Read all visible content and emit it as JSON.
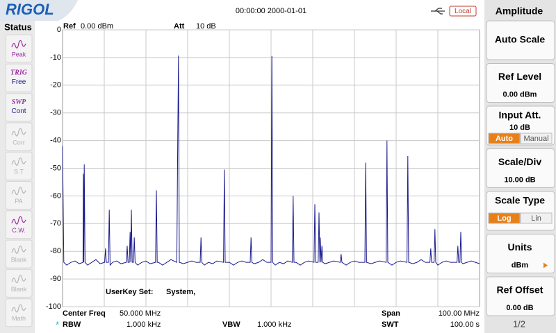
{
  "header": {
    "logo": "RIGOL",
    "timestamp": "00:00:00 2000-01-01",
    "remote": "Local"
  },
  "status": {
    "title": "Status",
    "items": [
      {
        "label": "Peak",
        "active": true
      },
      {
        "tag": "TRIG",
        "label": "Free",
        "active": true
      },
      {
        "tag": "SWP",
        "label": "Cont",
        "active": true
      },
      {
        "label": "Corr",
        "active": false
      },
      {
        "label": "S.T",
        "active": false
      },
      {
        "label": "PA",
        "active": false
      },
      {
        "label": "C.W.",
        "active": true
      },
      {
        "label": "Blank",
        "active": false
      },
      {
        "label": "Blank",
        "active": false
      },
      {
        "label": "Math",
        "active": false
      }
    ]
  },
  "chart_data": {
    "type": "line",
    "ref_label": "Ref",
    "ref_value": "0.00 dBm",
    "att_label": "Att",
    "att_value": "10 dB",
    "annotation_label": "UserKey Set:",
    "annotation_value": "System,",
    "xlim": [
      0,
      100
    ],
    "ylim": [
      -100,
      0
    ],
    "yticks": [
      0,
      -10,
      -20,
      -30,
      -40,
      -50,
      -60,
      -70,
      -80,
      -90,
      -100
    ],
    "grid": true,
    "x": [
      0,
      0.3,
      1,
      2,
      3,
      4,
      4.9,
      5.0,
      5.1,
      5.2,
      5.4,
      6,
      7,
      8,
      9,
      10.1,
      10.3,
      10.5,
      11.0,
      11.2,
      11.4,
      12,
      13,
      14,
      15.3,
      15.5,
      15.7,
      16.0,
      16.2,
      16.35,
      16.5,
      16.7,
      17.0,
      17.2,
      17.4,
      18,
      19,
      20,
      21,
      22.3,
      22.5,
      22.7,
      23,
      24,
      25,
      26,
      27.4,
      27.6,
      27.8,
      28.0,
      29,
      30,
      31,
      32,
      33.0,
      33.2,
      33.4,
      34,
      35,
      36,
      37,
      38.6,
      38.8,
      39.0,
      40,
      41,
      42,
      43,
      44,
      45.0,
      45.2,
      45.4,
      46,
      47,
      48,
      49,
      50.0,
      50.2,
      50.4,
      51,
      52,
      53,
      54,
      55.1,
      55.3,
      55.5,
      56,
      57,
      58,
      59,
      60.3,
      60.5,
      60.7,
      61.3,
      61.5,
      61.7,
      61.8,
      62.0,
      62.2,
      62.4,
      63,
      64,
      65,
      66.6,
      66.8,
      67.0,
      68,
      69,
      70,
      71,
      72.5,
      72.7,
      72.9,
      74,
      75,
      76,
      77.6,
      77.8,
      78.0,
      79,
      80,
      81,
      82.6,
      82.8,
      83.0,
      84,
      85,
      86,
      87,
      88.1,
      88.3,
      88.5,
      89.1,
      89.3,
      89.5,
      90,
      91,
      92,
      93,
      94.6,
      94.8,
      95.0,
      95.3,
      95.5,
      95.7,
      96,
      97,
      98,
      99,
      100
    ],
    "series": [
      {
        "color": "#1a1a8c",
        "values": [
          -42,
          -84,
          -85,
          -84,
          -83.5,
          -84.5,
          -84,
          -52,
          -84,
          -48.6,
          -84,
          -85,
          -84,
          -83,
          -84.5,
          -84,
          -79,
          -84,
          -84,
          -65,
          -85,
          -84,
          -83.5,
          -84.5,
          -84,
          -78,
          -84,
          -84,
          -73,
          -84,
          -65,
          -84,
          -84,
          -75,
          -84,
          -85,
          -84,
          -83.5,
          -84.5,
          -84,
          -58,
          -84,
          -84,
          -85,
          -84,
          -83,
          -84,
          -44,
          -9.3,
          -84,
          -84.5,
          -84,
          -83.5,
          -84,
          -84,
          -75,
          -84,
          -85,
          -84,
          -84.5,
          -83.5,
          -84,
          -50.5,
          -84,
          -84,
          -85,
          -84,
          -83.5,
          -84,
          -84,
          -75,
          -84,
          -84.5,
          -84,
          -83,
          -84,
          -84,
          -9.5,
          -84,
          -85,
          -84,
          -84.5,
          -83.5,
          -84,
          -60,
          -84,
          -84,
          -85,
          -84,
          -83.5,
          -84,
          -63,
          -84,
          -84,
          -66,
          -84,
          -75,
          -84,
          -78,
          -84,
          -84.5,
          -84,
          -83.5,
          -84,
          -81,
          -84,
          -85,
          -84,
          -83.5,
          -84,
          -84,
          -48,
          -84,
          -84.5,
          -84,
          -83.5,
          -84,
          -40,
          -84,
          -85,
          -84,
          -83.5,
          -84,
          -45.6,
          -84,
          -84.5,
          -84,
          -83,
          -84,
          -84,
          -79,
          -84,
          -84,
          -72,
          -84,
          -85,
          -84,
          -83.5,
          -84,
          -84,
          -78,
          -84,
          -84,
          -73,
          -84,
          -84.5,
          -84,
          -83.5,
          -84,
          -84.5
        ]
      }
    ]
  },
  "readouts": {
    "center_label": "Center Freq",
    "center_value": "50.000 MHz",
    "span_label": "Span",
    "span_value": "100.00 MHz",
    "rbw_marker": "*",
    "rbw_label": "RBW",
    "rbw_value": "1.000 kHz",
    "vbw_label": "VBW",
    "vbw_value": "1.000 kHz",
    "swt_label": "SWT",
    "swt_value": "100.00 s"
  },
  "menu": {
    "title": "Amplitude",
    "buttons": [
      {
        "label": "Auto Scale"
      },
      {
        "label": "Ref Level",
        "value": "0.00 dBm"
      },
      {
        "label": "Input Att.",
        "value": "10 dB",
        "options": [
          "Auto",
          "Manual"
        ],
        "selected": 0
      },
      {
        "label": "Scale/Div",
        "value": "10.00 dB"
      },
      {
        "label": "Scale Type",
        "options": [
          "Log",
          "Lin"
        ],
        "selected": 0
      },
      {
        "label": "Units",
        "value": "dBm",
        "submenu": true
      },
      {
        "label": "Ref Offset",
        "value": "0.00 dB"
      }
    ],
    "page": "1/2"
  }
}
